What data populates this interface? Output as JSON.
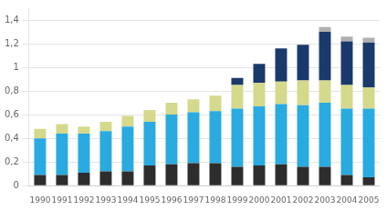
{
  "chart_data": {
    "type": "bar",
    "stacked": true,
    "grid": true,
    "categories": [
      "1990",
      "1991",
      "1992",
      "1993",
      "1994",
      "1995",
      "1996",
      "1997",
      "1998",
      "1999",
      "2000",
      "2001",
      "2002",
      "2003",
      "2004",
      "2005"
    ],
    "series": [
      {
        "color": "#2d2d2d",
        "values": [
          0.09,
          0.09,
          0.11,
          0.12,
          0.12,
          0.17,
          0.18,
          0.19,
          0.19,
          0.16,
          0.17,
          0.18,
          0.16,
          0.16,
          0.09,
          0.07
        ]
      },
      {
        "color": "#29aae1",
        "values": [
          0.31,
          0.35,
          0.33,
          0.34,
          0.38,
          0.37,
          0.42,
          0.43,
          0.44,
          0.49,
          0.5,
          0.51,
          0.52,
          0.54,
          0.56,
          0.58
        ]
      },
      {
        "color": "#d4d98b",
        "values": [
          0.08,
          0.08,
          0.06,
          0.08,
          0.09,
          0.1,
          0.1,
          0.11,
          0.13,
          0.2,
          0.2,
          0.19,
          0.21,
          0.19,
          0.2,
          0.18
        ]
      },
      {
        "color": "#1a3a6b",
        "values": [
          0.0,
          0.0,
          0.0,
          0.0,
          0.0,
          0.0,
          0.0,
          0.0,
          0.0,
          0.06,
          0.16,
          0.28,
          0.3,
          0.41,
          0.37,
          0.38
        ]
      },
      {
        "color": "#b0b0b0",
        "values": [
          0.0,
          0.0,
          0.0,
          0.0,
          0.0,
          0.0,
          0.0,
          0.0,
          0.0,
          0.0,
          0.0,
          0.0,
          0.0,
          0.04,
          0.04,
          0.04
        ]
      }
    ],
    "ylim": [
      0,
      1.5
    ],
    "yticks": [
      0,
      {
        "value": 0.2,
        "label": "0,2"
      },
      {
        "value": 0.4,
        "label": "0,4"
      },
      {
        "value": 0.6,
        "label": "0,6"
      },
      {
        "value": 0.8,
        "label": "0,8"
      },
      1,
      {
        "value": 1.2,
        "label": "1,2"
      },
      {
        "value": 1.4,
        "label": "1,4"
      }
    ]
  }
}
